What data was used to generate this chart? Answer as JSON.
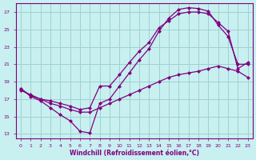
{
  "xlabel": "Windchill (Refroidissement éolien,°C)",
  "bg_color": "#c8f0f0",
  "grid_color": "#a0d0d0",
  "line_color": "#800080",
  "xlim": [
    -0.5,
    23.5
  ],
  "ylim": [
    12.5,
    28.0
  ],
  "xticks": [
    0,
    1,
    2,
    3,
    4,
    5,
    6,
    7,
    8,
    9,
    10,
    11,
    12,
    13,
    14,
    15,
    16,
    17,
    18,
    19,
    20,
    21,
    22,
    23
  ],
  "yticks": [
    13,
    15,
    17,
    19,
    21,
    23,
    25,
    27
  ],
  "line1_x": [
    0,
    1,
    2,
    3,
    4,
    5,
    6,
    7,
    8,
    9,
    10,
    11,
    12,
    13,
    14,
    15,
    16,
    17,
    18,
    19,
    20,
    21,
    22,
    23
  ],
  "line1_y": [
    18.0,
    17.5,
    17.0,
    16.5,
    16.2,
    15.8,
    15.5,
    15.5,
    16.0,
    16.5,
    17.0,
    17.5,
    18.0,
    18.5,
    19.0,
    19.5,
    19.8,
    20.0,
    20.2,
    20.5,
    20.8,
    20.5,
    20.2,
    19.5
  ],
  "line2_x": [
    0,
    1,
    2,
    3,
    4,
    5,
    6,
    7,
    8,
    9,
    10,
    11,
    12,
    13,
    14,
    15,
    16,
    17,
    18,
    19,
    20,
    21,
    22,
    23
  ],
  "line2_y": [
    18.2,
    17.3,
    16.8,
    16.0,
    15.2,
    14.5,
    13.3,
    13.1,
    16.5,
    17.0,
    18.5,
    20.0,
    21.5,
    22.8,
    24.8,
    26.3,
    27.3,
    27.5,
    27.4,
    27.1,
    25.5,
    24.2,
    21.0,
    21.0
  ],
  "line3_x": [
    0,
    1,
    2,
    3,
    4,
    5,
    6,
    7,
    8,
    9,
    10,
    11,
    12,
    13,
    14,
    15,
    16,
    17,
    18,
    19,
    20,
    21,
    22,
    23
  ],
  "line3_y": [
    18.2,
    17.4,
    17.0,
    16.8,
    16.5,
    16.2,
    15.8,
    16.0,
    18.5,
    18.5,
    19.8,
    21.2,
    22.5,
    23.5,
    25.2,
    26.0,
    26.8,
    27.0,
    27.0,
    26.8,
    25.8,
    24.8,
    20.5,
    21.2
  ]
}
